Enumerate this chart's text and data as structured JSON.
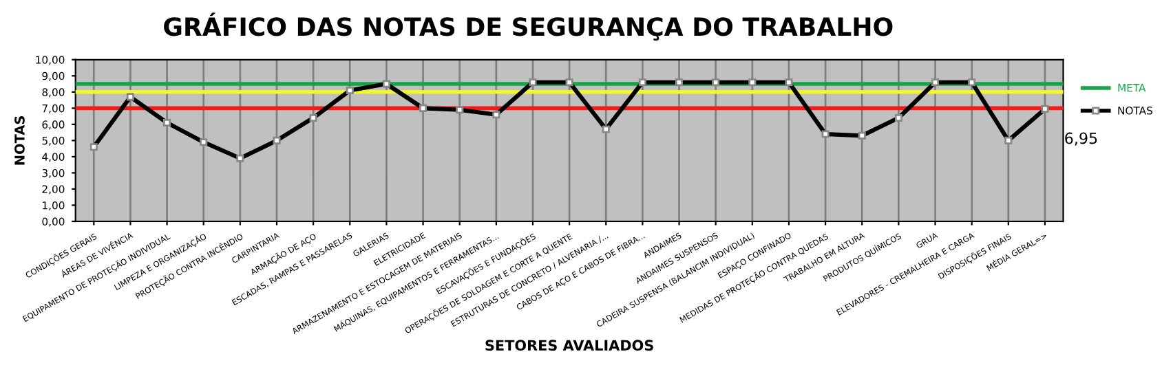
{
  "chart_data": {
    "type": "line",
    "title": "GRÁFICO DAS NOTAS DE SEGURANÇA DO TRABALHO",
    "xlabel": "SETORES AVALIADOS",
    "ylabel": "NOTAS",
    "categories": [
      "CONDIÇÕES GERAIS",
      "ÁREAS DE VIVÊNCIA",
      "EQUIPAMENTO DE PROTEÇÃO INDIVIDUAL",
      "LIMPEZA E ORGANIZAÇÃO",
      "PROTEÇÃO CONTRA INCÊNDIO",
      "CARPINTARIA",
      "ARMAÇÃO DE AÇO",
      "ESCADAS, RAMPAS E PASSARELAS",
      "GALERIAS",
      "ELETRICIDADE",
      "ARMAZENAMENTO E ESTOCAGEM DE MATERIAIS",
      "MÁQUINAS, EQUIPAMENTOS E FERRAMENTAS...",
      "ESCAVAÇÕES E FUNDAÇÕES",
      "OPERAÇÕES DE SOLDAGEM E CORTE A QUENTE",
      "ESTRUTURAS DE CONCRETO / ALVENARIA /...",
      "CABOS DE AÇO E CABOS DE FIBRA...",
      "ANDAIMES",
      "ANDAIMES SUSPENSOS",
      "CADEIRA SUSPENSA (BALANCIM INDIVIDUAL)",
      "ESPAÇO CONFINADO",
      "MEDIDAS DE PROTEÇÃO CONTRA QUEDAS",
      "TRABALHO EM ALTURA",
      "PRODUTOS QUÍMICOS",
      "GRUA",
      "ELEVADORES - CREMALHEIRA E CARGA",
      "DISPOSIÇÕES FINAIS",
      "MÉDIA GERAL=>"
    ],
    "series": [
      {
        "name": "NOTAS",
        "color": "#000000",
        "values": [
          4.6,
          7.7,
          6.1,
          4.9,
          3.9,
          5.0,
          6.4,
          8.1,
          8.5,
          7.0,
          6.9,
          6.6,
          8.6,
          8.6,
          5.7,
          8.6,
          8.6,
          8.6,
          8.6,
          8.6,
          5.4,
          5.3,
          6.4,
          8.6,
          8.6,
          5.0,
          6.95
        ],
        "value_labels": [
          null,
          null,
          null,
          null,
          null,
          null,
          null,
          null,
          null,
          null,
          null,
          null,
          null,
          null,
          null,
          null,
          null,
          null,
          null,
          null,
          null,
          null,
          null,
          null,
          null,
          null,
          "6,95"
        ]
      }
    ],
    "ref_lines": [
      {
        "axis": "y",
        "value": 8.5,
        "label": "META",
        "color": "#16a34a"
      },
      {
        "axis": "y",
        "value": 8.0,
        "color": "#f5f52a"
      },
      {
        "axis": "y",
        "value": 7.0,
        "color": "#f21c1c"
      }
    ],
    "ylim": [
      0,
      10
    ],
    "yticks": [
      {
        "value": 0,
        "label": "0,00"
      },
      {
        "value": 1,
        "label": "1,00"
      },
      {
        "value": 2,
        "label": "2,00"
      },
      {
        "value": 3,
        "label": "3,00"
      },
      {
        "value": 4,
        "label": "4,00"
      },
      {
        "value": 5,
        "label": "5,00"
      },
      {
        "value": 6,
        "label": "6,00"
      },
      {
        "value": 7,
        "label": "7,00"
      },
      {
        "value": 8,
        "label": "8,00"
      },
      {
        "value": 9,
        "label": "9,00"
      },
      {
        "value": 10,
        "label": "10,00"
      }
    ],
    "grid": "x",
    "legend": "right",
    "marker": "square",
    "line_style": "solid"
  }
}
